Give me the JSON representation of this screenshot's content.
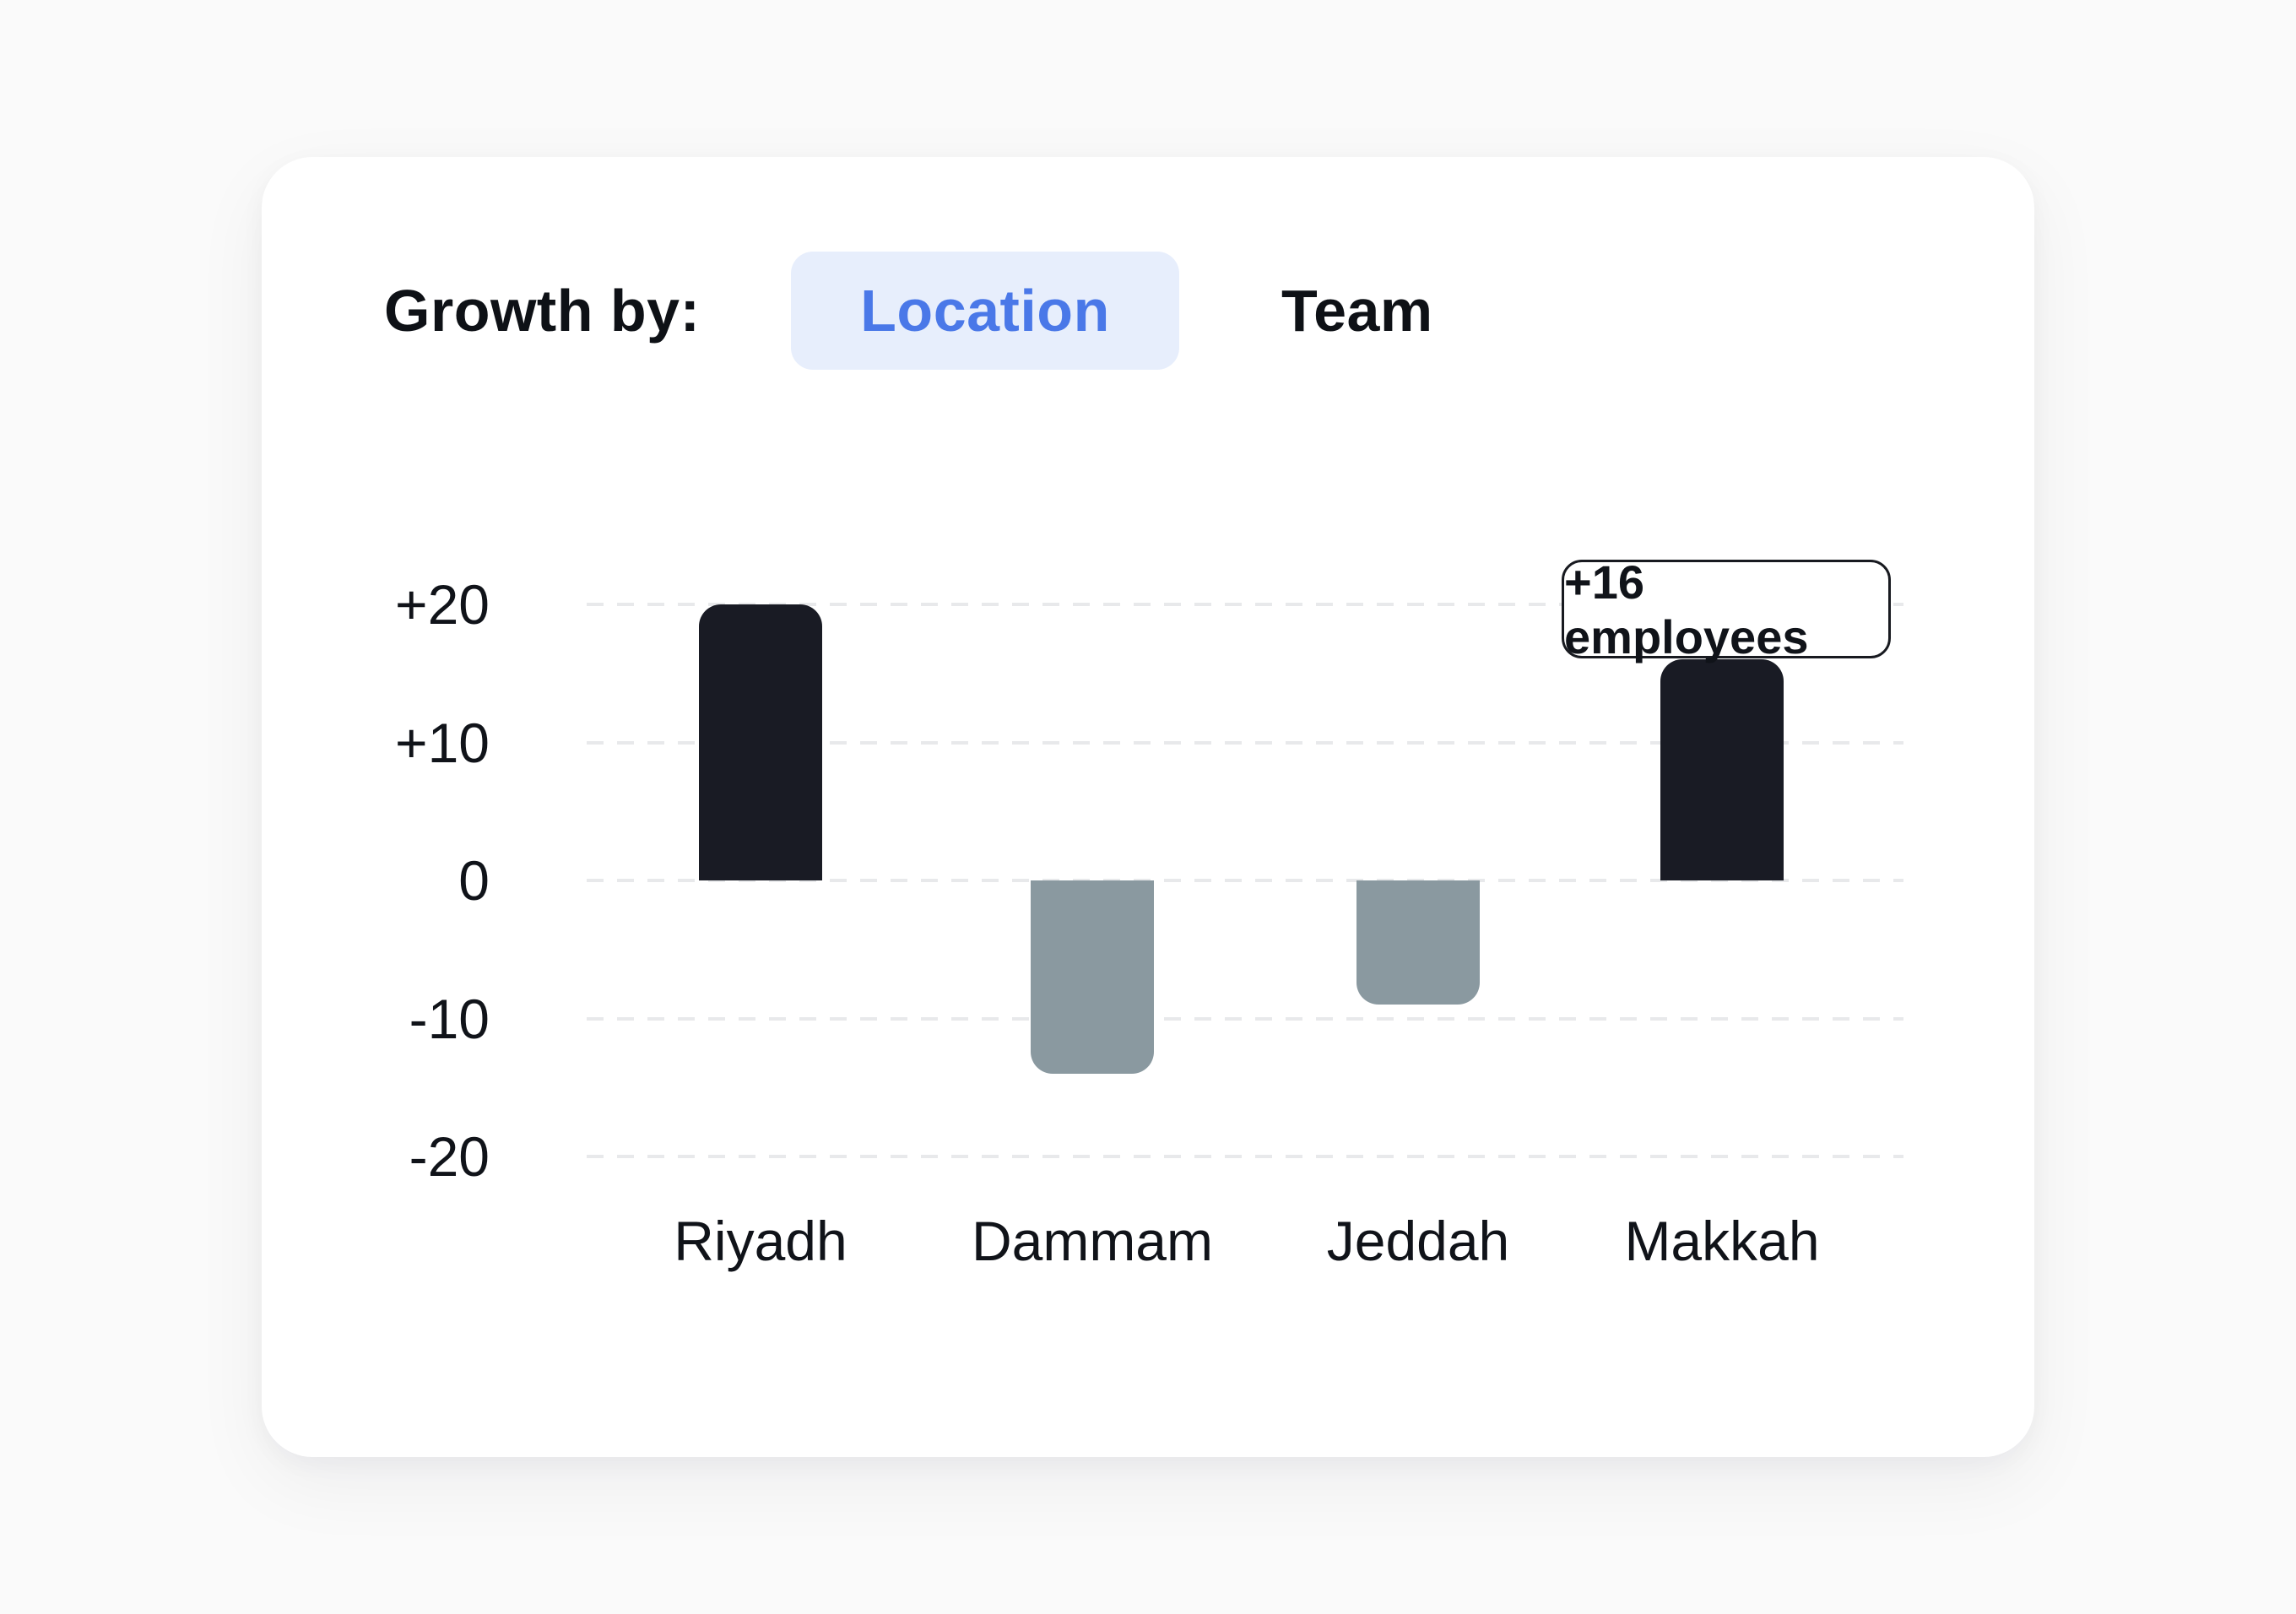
{
  "header": {
    "label": "Growth by:",
    "tabs": [
      {
        "label": "Location",
        "active": true
      },
      {
        "label": "Team",
        "active": false
      }
    ]
  },
  "colors": {
    "accent_blue": "#4a78e8",
    "accent_blue_light": "#e7eefc",
    "bar_positive": "#191b24",
    "bar_negative": "#8a99a0",
    "grid": "#e8e9eb",
    "card_background": "#ffffff",
    "page_background": "#fafafa",
    "text": "#101319"
  },
  "chart_data": {
    "type": "bar",
    "categories": [
      "Riyadh",
      "Dammam",
      "Jeddah",
      "Makkah"
    ],
    "values": [
      20,
      -14,
      -9,
      16
    ],
    "unit": "employees",
    "yticks": [
      20,
      10,
      0,
      -10,
      -20
    ],
    "ytick_labels": [
      "+20",
      "+10",
      "0",
      "-10",
      "-20"
    ],
    "ylim": [
      -20,
      20
    ],
    "grid": "horizontal-dashed",
    "legend": "none",
    "positive_color": "#191b24",
    "negative_color": "#8a99a0",
    "annotation": {
      "category": "Makkah",
      "text": "+16 employees"
    }
  }
}
